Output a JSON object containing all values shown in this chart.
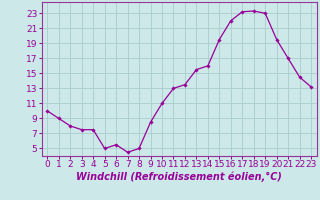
{
  "x": [
    0,
    1,
    2,
    3,
    4,
    5,
    6,
    7,
    8,
    9,
    10,
    11,
    12,
    13,
    14,
    15,
    16,
    17,
    18,
    19,
    20,
    21,
    22,
    23
  ],
  "y": [
    10.0,
    9.0,
    8.0,
    7.5,
    7.5,
    5.0,
    5.5,
    4.5,
    5.0,
    8.5,
    11.0,
    13.0,
    13.5,
    15.5,
    16.0,
    19.5,
    22.0,
    23.2,
    23.3,
    23.0,
    19.5,
    17.0,
    14.5,
    13.2
  ],
  "line_color": "#990099",
  "marker": "D",
  "marker_size": 1.8,
  "bg_color": "#cce8e8",
  "grid_color": "#aacccc",
  "spine_color": "#993399",
  "tick_label_color": "#990099",
  "xlabel": "Windchill (Refroidissement éolien,°C)",
  "xlabel_color": "#990099",
  "xlim": [
    -0.5,
    23.5
  ],
  "ylim": [
    4.0,
    24.5
  ],
  "yticks": [
    5,
    7,
    9,
    11,
    13,
    15,
    17,
    19,
    21,
    23
  ],
  "xticks": [
    0,
    1,
    2,
    3,
    4,
    5,
    6,
    7,
    8,
    9,
    10,
    11,
    12,
    13,
    14,
    15,
    16,
    17,
    18,
    19,
    20,
    21,
    22,
    23
  ],
  "font_size": 6.5,
  "xlabel_fontsize": 7.0
}
